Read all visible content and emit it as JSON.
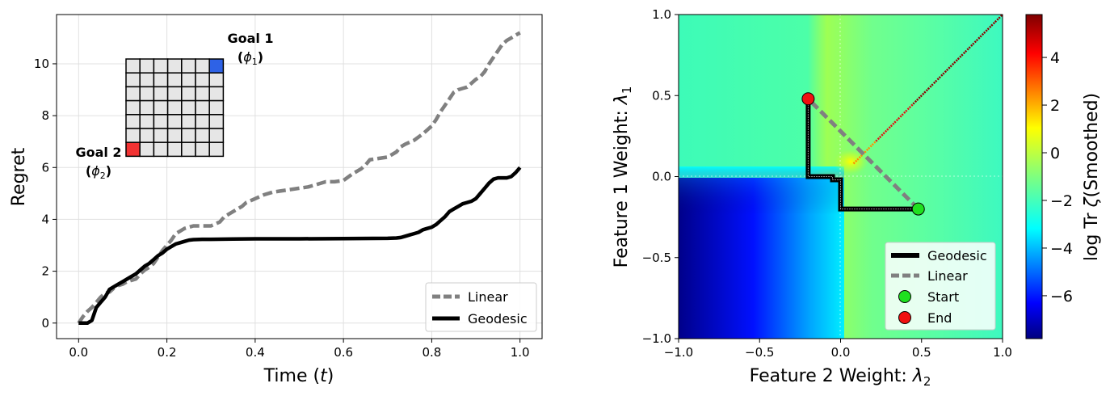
{
  "chart_data": [
    {
      "type": "line",
      "xlabel_text": "Time (",
      "xlabel_var": "t",
      "xlabel_close": ")",
      "ylabel": "Regret",
      "xlim": [
        -0.05,
        1.05
      ],
      "ylim": [
        -0.6,
        11.9
      ],
      "xticks": [
        0.0,
        0.2,
        0.4,
        0.6,
        0.8,
        1.0
      ],
      "xtick_labels": [
        "0.0",
        "0.2",
        "0.4",
        "0.6",
        "0.8",
        "1.0"
      ],
      "yticks": [
        0,
        2,
        4,
        6,
        8,
        10
      ],
      "ytick_labels": [
        "0",
        "2",
        "4",
        "6",
        "8",
        "10"
      ],
      "grid": true,
      "legend_position": "lower-right",
      "series": [
        {
          "name": "Linear",
          "color": "#808080",
          "dash": "dashed",
          "x": [
            0.0,
            0.01,
            0.02,
            0.03,
            0.04,
            0.05,
            0.06,
            0.07,
            0.08,
            0.09,
            0.1,
            0.11,
            0.12,
            0.13,
            0.14,
            0.15,
            0.16,
            0.17,
            0.18,
            0.19,
            0.2,
            0.21,
            0.22,
            0.23,
            0.24,
            0.25,
            0.26,
            0.28,
            0.3,
            0.32,
            0.33,
            0.35,
            0.37,
            0.38,
            0.4,
            0.42,
            0.44,
            0.46,
            0.48,
            0.5,
            0.52,
            0.54,
            0.56,
            0.58,
            0.6,
            0.62,
            0.64,
            0.65,
            0.66,
            0.68,
            0.7,
            0.72,
            0.73,
            0.74,
            0.76,
            0.78,
            0.8,
            0.81,
            0.82,
            0.83,
            0.84,
            0.85,
            0.86,
            0.87,
            0.88,
            0.89,
            0.9,
            0.91,
            0.92,
            0.93,
            0.94,
            0.95,
            0.96,
            0.97,
            0.98,
            0.99,
            1.0
          ],
          "y": [
            0.0,
            0.25,
            0.45,
            0.6,
            0.8,
            1.0,
            1.15,
            1.2,
            1.35,
            1.45,
            1.5,
            1.6,
            1.65,
            1.7,
            1.9,
            2.05,
            2.15,
            2.3,
            2.55,
            2.8,
            3.0,
            3.2,
            3.45,
            3.55,
            3.65,
            3.7,
            3.75,
            3.75,
            3.75,
            3.9,
            4.1,
            4.3,
            4.5,
            4.65,
            4.8,
            4.95,
            5.05,
            5.1,
            5.15,
            5.2,
            5.25,
            5.35,
            5.45,
            5.45,
            5.5,
            5.75,
            5.95,
            6.1,
            6.3,
            6.35,
            6.4,
            6.6,
            6.8,
            6.9,
            7.05,
            7.3,
            7.6,
            7.85,
            8.15,
            8.4,
            8.65,
            8.9,
            9.0,
            9.05,
            9.1,
            9.25,
            9.4,
            9.5,
            9.7,
            10.0,
            10.25,
            10.5,
            10.75,
            10.9,
            11.0,
            11.1,
            11.2
          ]
        },
        {
          "name": "Geodesic",
          "color": "#000000",
          "dash": "solid",
          "x": [
            0.0,
            0.01,
            0.02,
            0.03,
            0.04,
            0.05,
            0.06,
            0.07,
            0.08,
            0.09,
            0.1,
            0.11,
            0.12,
            0.13,
            0.14,
            0.15,
            0.16,
            0.17,
            0.18,
            0.19,
            0.2,
            0.21,
            0.22,
            0.23,
            0.24,
            0.25,
            0.26,
            0.28,
            0.3,
            0.35,
            0.4,
            0.5,
            0.6,
            0.7,
            0.72,
            0.73,
            0.74,
            0.75,
            0.76,
            0.77,
            0.78,
            0.79,
            0.8,
            0.81,
            0.82,
            0.83,
            0.84,
            0.85,
            0.86,
            0.87,
            0.88,
            0.89,
            0.9,
            0.91,
            0.92,
            0.93,
            0.94,
            0.95,
            0.96,
            0.97,
            0.98,
            0.99,
            1.0
          ],
          "y": [
            0.0,
            0.0,
            0.0,
            0.1,
            0.6,
            0.8,
            1.0,
            1.3,
            1.4,
            1.5,
            1.6,
            1.7,
            1.8,
            1.9,
            2.05,
            2.2,
            2.3,
            2.45,
            2.6,
            2.7,
            2.85,
            2.95,
            3.05,
            3.1,
            3.15,
            3.2,
            3.22,
            3.23,
            3.23,
            3.24,
            3.25,
            3.25,
            3.26,
            3.27,
            3.28,
            3.3,
            3.35,
            3.4,
            3.45,
            3.5,
            3.6,
            3.65,
            3.7,
            3.8,
            3.95,
            4.1,
            4.3,
            4.4,
            4.5,
            4.6,
            4.65,
            4.7,
            4.8,
            5.0,
            5.2,
            5.4,
            5.55,
            5.6,
            5.6,
            5.6,
            5.65,
            5.8,
            6.0
          ]
        }
      ],
      "annotations": [
        {
          "line1": "Goal 1",
          "line2_open": "(",
          "line2_var": "ϕ",
          "line2_sub": "1",
          "line2_close": ")"
        },
        {
          "line1": "Goal 2",
          "line2_open": "(",
          "line2_var": "ϕ",
          "line2_sub": "2",
          "line2_close": ")"
        }
      ],
      "inset_grid": {
        "rows": 7,
        "cols": 7,
        "cell_color": "#e6e6e6",
        "border_color": "#000000",
        "goal1_cell": [
          0,
          6
        ],
        "goal1_color": "#2e62e6",
        "goal2_cell": [
          6,
          0
        ],
        "goal2_color": "#f23333"
      }
    },
    {
      "type": "heatmap",
      "xlabel_text": "Feature 2 Weight: ",
      "xlabel_var": "λ",
      "xlabel_sub": "2",
      "ylabel_text": "Feature 1 Weight: ",
      "ylabel_var": "λ",
      "ylabel_sub": "1",
      "xlim": [
        -1.0,
        1.0
      ],
      "ylim": [
        -1.0,
        1.0
      ],
      "xticks": [
        -1.0,
        -0.5,
        0.0,
        0.5,
        1.0
      ],
      "xtick_labels": [
        "−1.0",
        "−0.5",
        "0.0",
        "0.5",
        "1.0"
      ],
      "yticks": [
        -1.0,
        -0.5,
        0.0,
        0.5,
        1.0
      ],
      "ytick_labels": [
        "−1.0",
        "−0.5",
        "0.0",
        "0.5",
        "1.0"
      ],
      "colormap": "jet",
      "colorbar_range": [
        -7.8,
        5.8
      ],
      "colorbar_ticks": [
        -6,
        -4,
        -2,
        0,
        2,
        4
      ],
      "colorbar_tick_labels": [
        "−6",
        "−4",
        "−2",
        "0",
        "2",
        "4"
      ],
      "colorbar_label_prefix": "log Tr ",
      "colorbar_label_var": "ζ",
      "colorbar_label_suffix": "(Smoothed)",
      "legend_position": "lower-right",
      "geodesic": {
        "name": "Geodesic",
        "color": "#000000",
        "x": [
          0.48,
          0.0,
          0.0,
          -0.05,
          -0.05,
          -0.2,
          -0.2
        ],
        "y": [
          -0.2,
          -0.2,
          -0.02,
          -0.02,
          0.0,
          0.0,
          0.48
        ]
      },
      "linear": {
        "name": "Linear",
        "color": "#808080",
        "x": [
          0.48,
          -0.2
        ],
        "y": [
          -0.2,
          0.48
        ]
      },
      "start": {
        "name": "Start",
        "x": 0.48,
        "y": -0.2,
        "color": "#1fe01f"
      },
      "end": {
        "name": "End",
        "x": -0.2,
        "y": 0.48,
        "color": "#f01010"
      }
    }
  ]
}
